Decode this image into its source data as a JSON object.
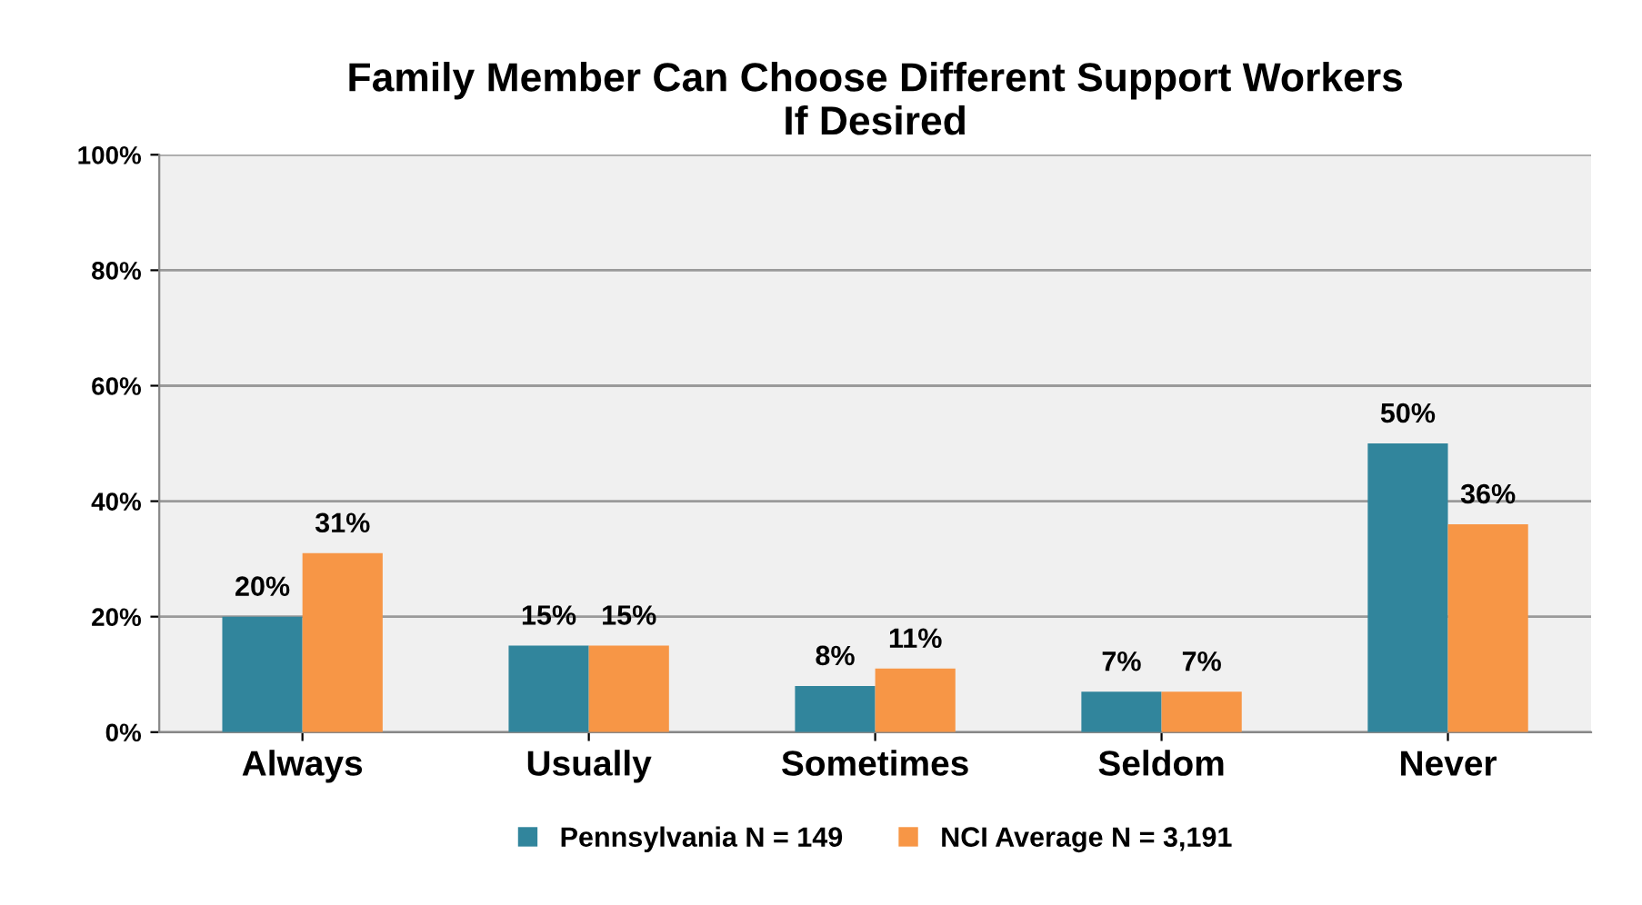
{
  "chart_data": {
    "type": "bar",
    "title": "Family Member Can Choose Different Support Workers\nIf Desired",
    "categories": [
      "Always",
      "Usually",
      "Sometimes",
      "Seldom",
      "Never"
    ],
    "series": [
      {
        "name": "Pennsylvania N = 149",
        "color": "#31859c",
        "values": [
          20,
          15,
          8,
          7,
          50
        ],
        "value_labels": [
          "20%",
          "15%",
          "8%",
          "7%",
          "50%"
        ]
      },
      {
        "name": "NCI Average N = 3,191",
        "color": "#f79646",
        "values": [
          31,
          15,
          11,
          7,
          36
        ],
        "value_labels": [
          "31%",
          "15%",
          "11%",
          "7%",
          "36%"
        ]
      }
    ],
    "ylim": [
      0,
      100
    ],
    "yticks": [
      {
        "value": 0,
        "label": "0%"
      },
      {
        "value": 20,
        "label": "20%"
      },
      {
        "value": 40,
        "label": "40%"
      },
      {
        "value": 60,
        "label": "60%"
      },
      {
        "value": 80,
        "label": "80%"
      },
      {
        "value": 100,
        "label": "100%"
      }
    ],
    "grid": "y",
    "legend": "bottom"
  }
}
